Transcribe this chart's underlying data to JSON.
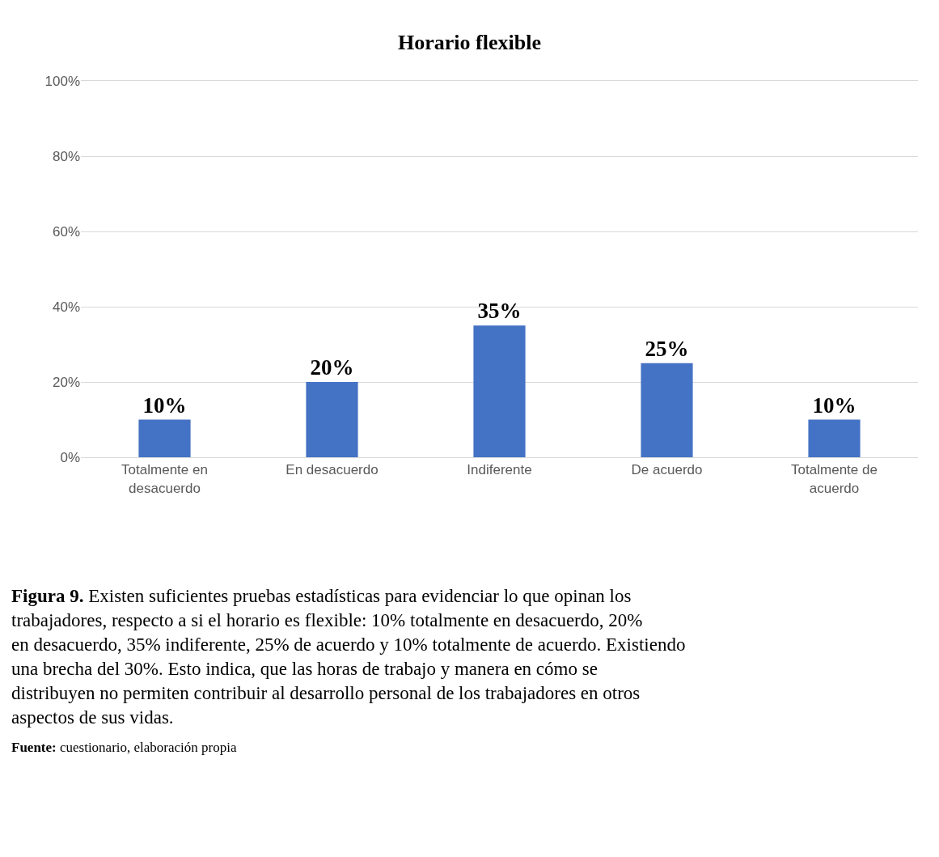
{
  "chart_data": {
    "type": "bar",
    "title": "Horario flexible",
    "categories": [
      "Totalmente en desacuerdo",
      "En desacuerdo",
      "Indiferente",
      "De acuerdo",
      "Totalmente de acuerdo"
    ],
    "values": [
      10,
      20,
      35,
      25,
      10
    ],
    "value_labels": [
      "10%",
      "20%",
      "35%",
      "25%",
      "10%"
    ],
    "color": "#4472c4",
    "ylim": [
      0,
      100
    ],
    "yticks": [
      {
        "value": 0,
        "label": "0%"
      },
      {
        "value": 20,
        "label": "20%"
      },
      {
        "value": 40,
        "label": "40%"
      },
      {
        "value": 60,
        "label": "60%"
      },
      {
        "value": 80,
        "label": "80%"
      },
      {
        "value": 100,
        "label": "100%"
      }
    ],
    "grid": "y",
    "annotations": [
      "Figura 9.",
      "Existen suficientes pruebas estadísticas para evidenciar lo que opinan los trabajadores, respecto a si el horario es flexible: 10% totalmente en desacuerdo, 20% en desacuerdo, 35% indiferente, 25% de acuerdo y 10% totalmente de acuerdo. Existiendo una brecha del 30%. Esto indica, que las horas de trabajo y manera en cómo se distribuyen no permiten contribuir al desarrollo personal de los trabajadores en otros aspectos de sus vidas.",
      "Fuente:",
      "cuestionario, elaboración propia"
    ]
  }
}
